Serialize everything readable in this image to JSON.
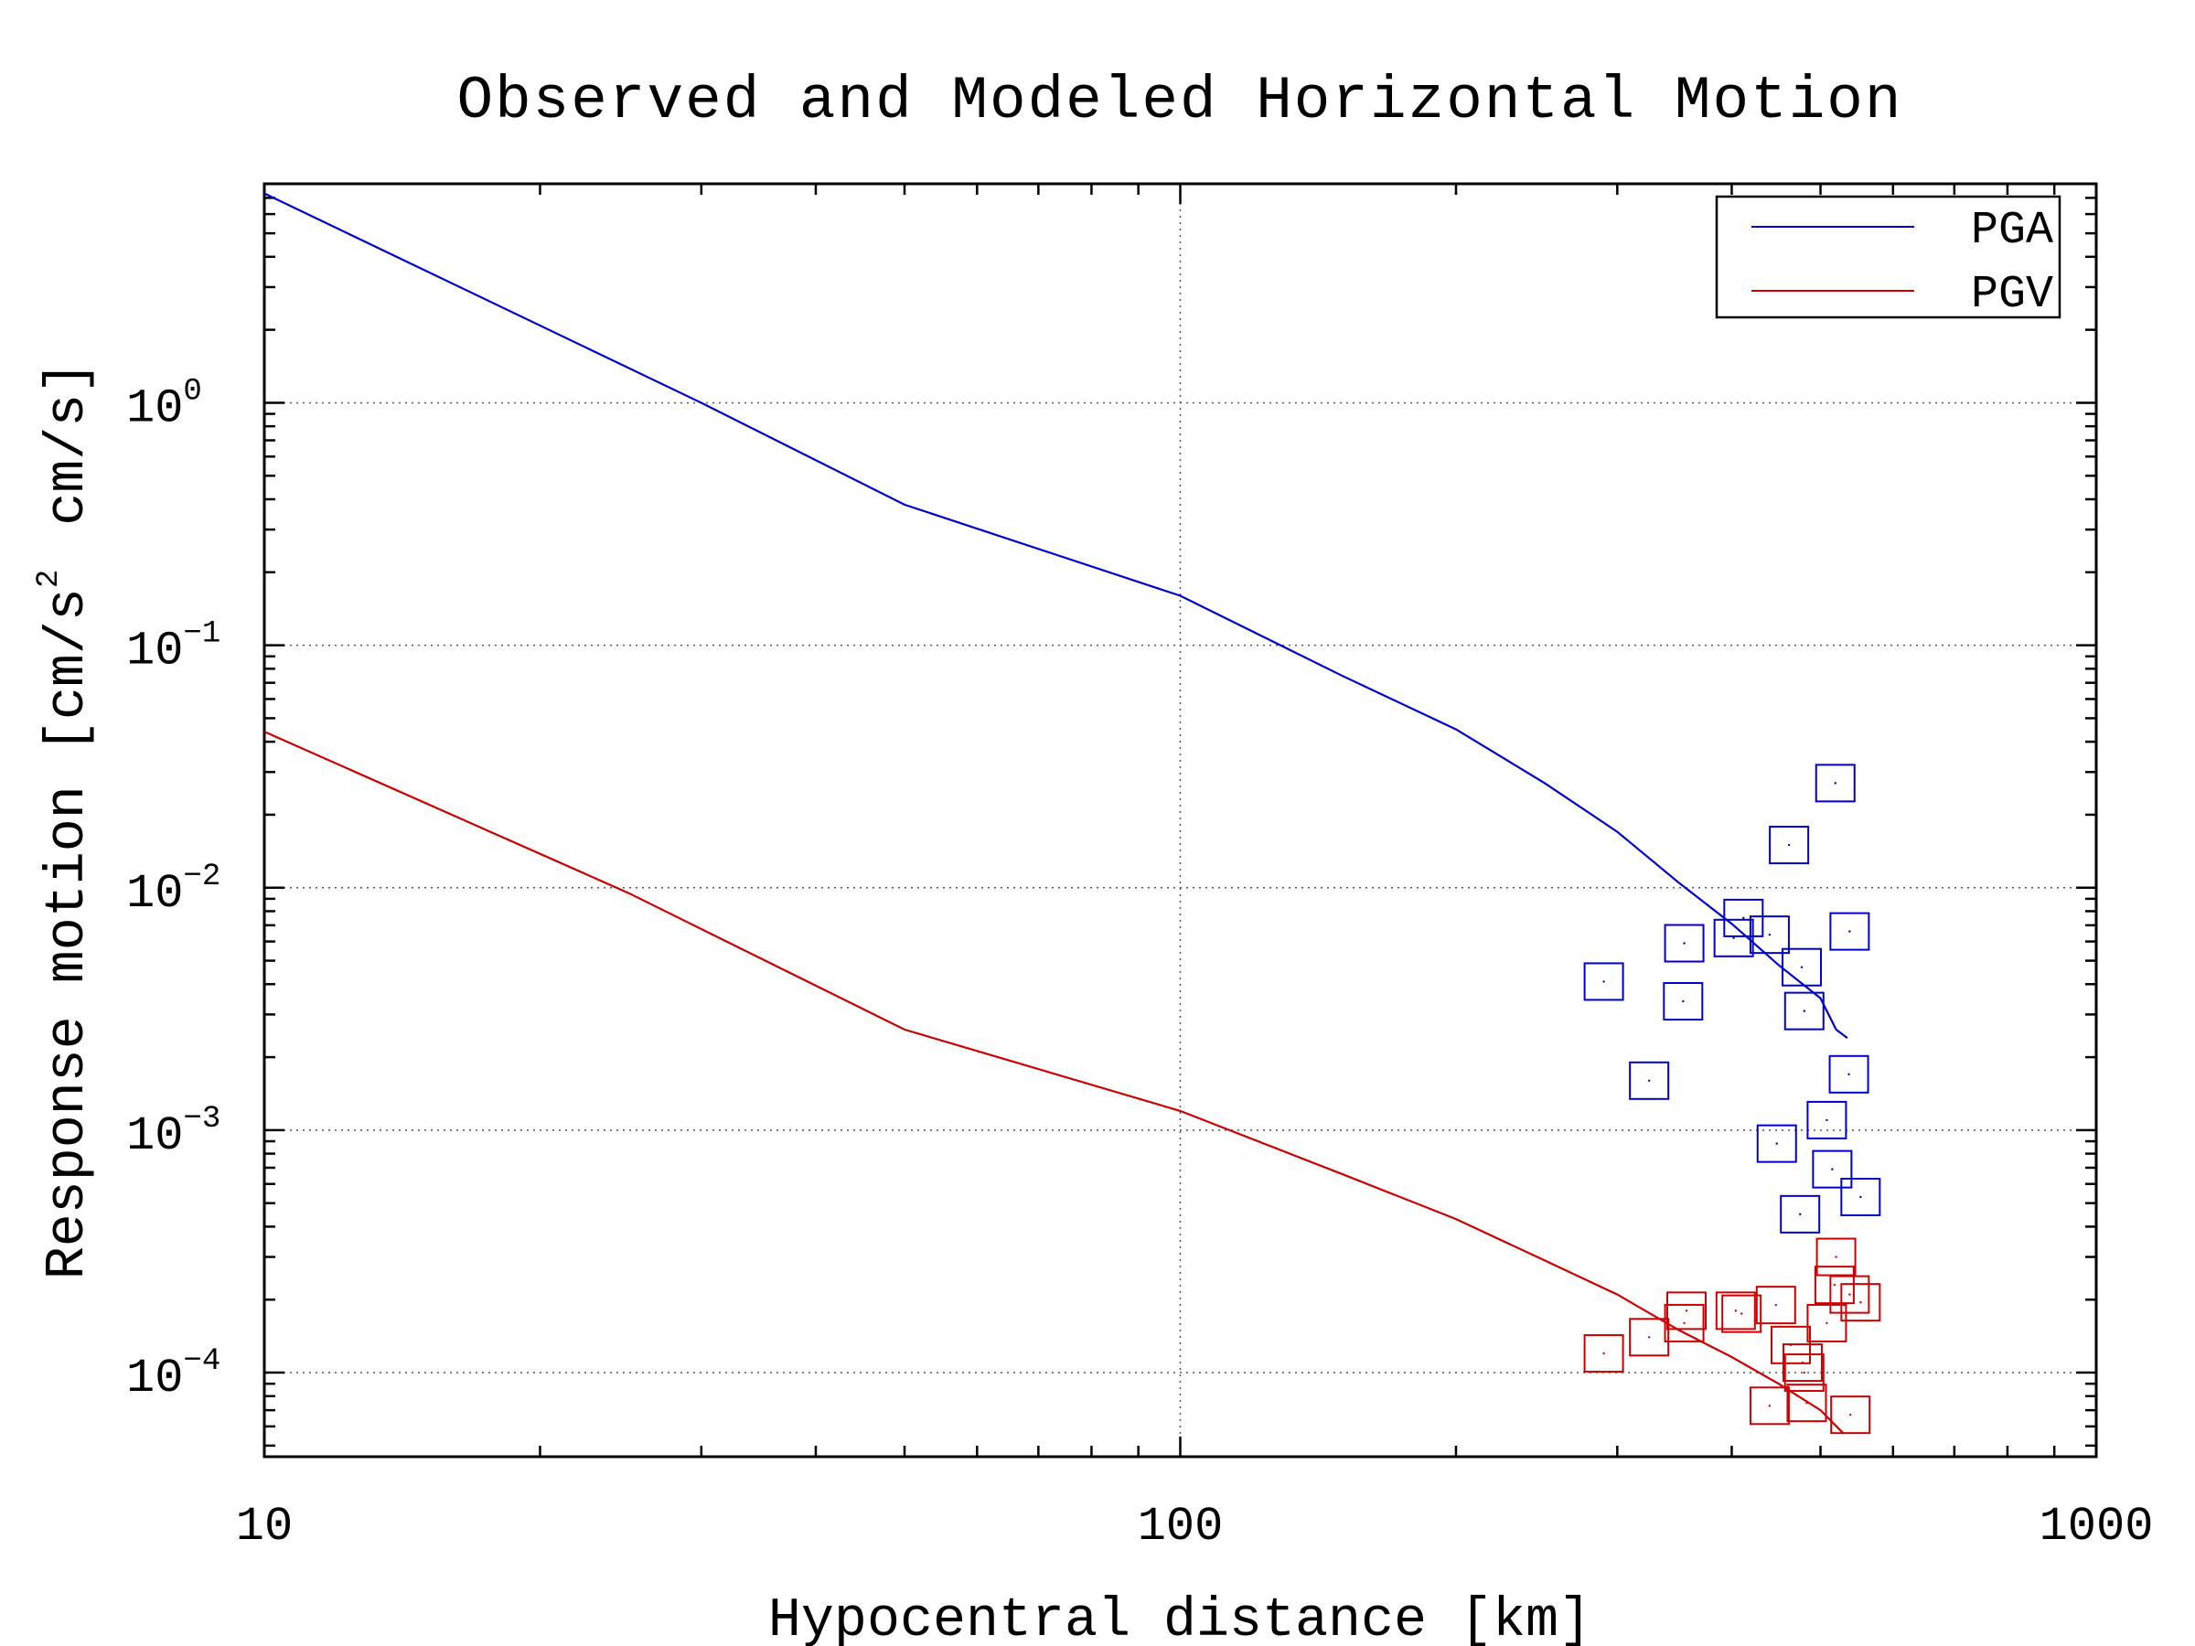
{
  "chart_data": {
    "type": "scatter",
    "title": "Observed and Modeled Horizontal Motion",
    "xlabel": "Hypocentral distance [km]",
    "ylabel": "Response motion [cm/s",
    "ylabel_exp": "2",
    "ylabel_tail": "cm/s]",
    "xscale": "log",
    "yscale": "log",
    "xlim": [
      10,
      1000
    ],
    "ylim": [
      4.5e-05,
      8
    ],
    "grid": true,
    "legend_position": "top-right",
    "x_ticks": [
      {
        "value": 10,
        "label": "10"
      },
      {
        "value": 100,
        "label": "100"
      },
      {
        "value": 1000,
        "label": "1000"
      }
    ],
    "y_ticks": [
      {
        "value": 1,
        "base": "10",
        "exp": "0"
      },
      {
        "value": 0.1,
        "base": "10",
        "exp": "−1"
      },
      {
        "value": 0.01,
        "base": "10",
        "exp": "−2"
      },
      {
        "value": 0.001,
        "base": "10",
        "exp": "−3"
      },
      {
        "value": 0.0001,
        "base": "10",
        "exp": "−4"
      }
    ],
    "series": [
      {
        "name": "PGA",
        "color": "#0000cc",
        "line": [
          [
            10,
            7.3
          ],
          [
            30,
            1.0
          ],
          [
            50,
            0.38
          ],
          [
            100,
            0.16
          ],
          [
            150,
            0.075
          ],
          [
            200,
            0.045
          ],
          [
            250,
            0.027
          ],
          [
            300,
            0.017
          ],
          [
            350,
            0.0105
          ],
          [
            400,
            0.0071
          ],
          [
            450,
            0.0048
          ],
          [
            500,
            0.0035
          ],
          [
            520,
            0.0026
          ],
          [
            535,
            0.0024
          ]
        ],
        "observed": [
          [
            290,
            0.0041
          ],
          [
            325,
            0.0016
          ],
          [
            355,
            0.0059
          ],
          [
            354,
            0.0034
          ],
          [
            402,
            0.0062
          ],
          [
            412,
            0.0075
          ],
          [
            440,
            0.0064
          ],
          [
            448,
            0.00088
          ],
          [
            462,
            0.015
          ],
          [
            475,
            0.00045
          ],
          [
            477,
            0.0047
          ],
          [
            480,
            0.0031
          ],
          [
            508,
            0.0011
          ],
          [
            515,
            0.00069
          ],
          [
            519,
            0.027
          ],
          [
            537,
            0.0017
          ],
          [
            538,
            0.0066
          ],
          [
            553,
            0.00053
          ]
        ]
      },
      {
        "name": "PGV",
        "color": "#cc0000",
        "line": [
          [
            10,
            0.044
          ],
          [
            25,
            0.0095
          ],
          [
            50,
            0.0026
          ],
          [
            100,
            0.0012
          ],
          [
            150,
            0.00066
          ],
          [
            200,
            0.00043
          ],
          [
            250,
            0.00029
          ],
          [
            300,
            0.00021
          ],
          [
            350,
            0.00015
          ],
          [
            400,
            0.000116
          ],
          [
            450,
            9e-05
          ],
          [
            500,
            7e-05
          ],
          [
            530,
            5.6e-05
          ]
        ],
        "observed": [
          [
            290,
            0.00012
          ],
          [
            325,
            0.00014
          ],
          [
            355,
            0.00016
          ],
          [
            357,
            0.00018
          ],
          [
            404,
            0.00018
          ],
          [
            410,
            0.000175
          ],
          [
            447,
            0.00019
          ],
          [
            440,
            7.3e-05
          ],
          [
            464,
            0.00013
          ],
          [
            478,
            0.00011
          ],
          [
            483,
            7.5e-05
          ],
          [
            480,
            0.0001
          ],
          [
            508,
            0.00016
          ],
          [
            518,
            0.00023
          ],
          [
            520,
            0.0003
          ],
          [
            538,
            0.00021
          ],
          [
            539,
            6.7e-05
          ],
          [
            553,
            0.000195
          ]
        ]
      }
    ]
  }
}
